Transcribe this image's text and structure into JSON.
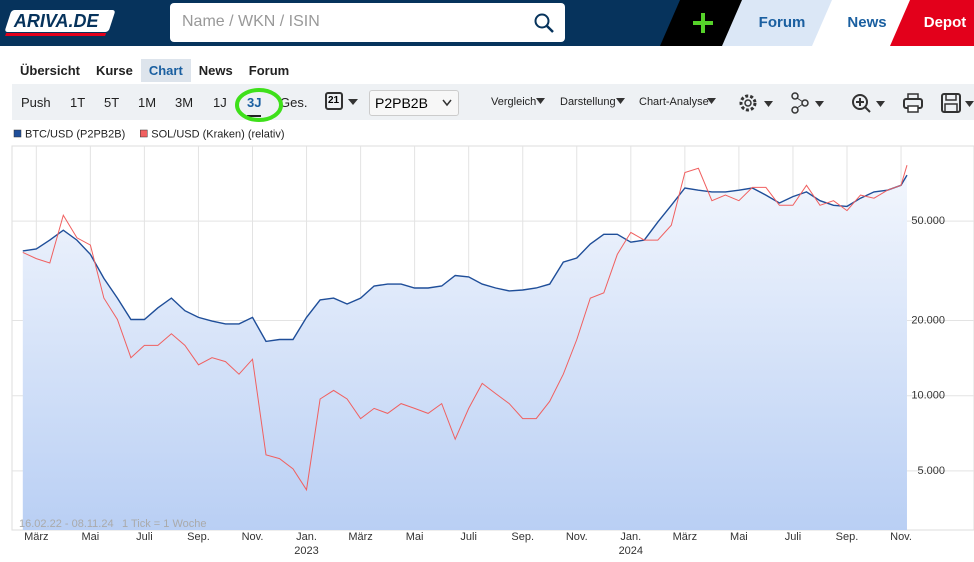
{
  "header": {
    "logo": "ARIVA.DE",
    "search_placeholder": "Name / WKN / ISIN",
    "tabs": [
      "Forum",
      "News",
      "Depot"
    ]
  },
  "nav": [
    "Übersicht",
    "Kurse",
    "Chart",
    "News",
    "Forum"
  ],
  "toolbar": {
    "periods": [
      "Push",
      "1T",
      "5T",
      "1M",
      "3M",
      "1J",
      "3J",
      "Ges."
    ],
    "calendar_day": "21",
    "exchange": "P2PB2B",
    "menus": [
      "Vergleich",
      "Darstellung",
      "Chart-Analyse"
    ]
  },
  "chart_data": {
    "type": "line",
    "ylog": true,
    "grid": true,
    "area": true,
    "range_text": "16.02.22 - 08.11.24",
    "tick_text": "1 Tick = 1 Woche",
    "xlim": [
      1.1,
      36.7
    ],
    "ylim": [
      2900,
      100000
    ],
    "yticks": [
      {
        "value": 5000,
        "label": "5.000"
      },
      {
        "value": 10000,
        "label": "10.000"
      },
      {
        "value": 20000,
        "label": "20.000"
      },
      {
        "value": 50000,
        "label": "50.000"
      }
    ],
    "xticks": [
      {
        "value": 2,
        "label": "März"
      },
      {
        "value": 4,
        "label": "Mai"
      },
      {
        "value": 6,
        "label": "Juli"
      },
      {
        "value": 8,
        "label": "Sep."
      },
      {
        "value": 10,
        "label": "Nov."
      },
      {
        "value": 12,
        "label": "Jan."
      },
      {
        "value": 14,
        "label": "März"
      },
      {
        "value": 16,
        "label": "Mai"
      },
      {
        "value": 18,
        "label": "Juli"
      },
      {
        "value": 20,
        "label": "Sep."
      },
      {
        "value": 22,
        "label": "Nov."
      },
      {
        "value": 24,
        "label": "Jan."
      },
      {
        "value": 26,
        "label": "März"
      },
      {
        "value": 28,
        "label": "Mai"
      },
      {
        "value": 30,
        "label": "Juli"
      },
      {
        "value": 32,
        "label": "Sep."
      },
      {
        "value": 34,
        "label": "Nov."
      }
    ],
    "year_labels": [
      {
        "value": 12,
        "label": "2023"
      },
      {
        "value": 24,
        "label": "2024"
      }
    ],
    "x": [
      1.5,
      2,
      2.5,
      3,
      3.5,
      4,
      4.5,
      5,
      5.5,
      6,
      6.5,
      7,
      7.5,
      8,
      8.5,
      9,
      9.5,
      10,
      10.5,
      11,
      11.5,
      12,
      12.5,
      13,
      13.5,
      14,
      14.5,
      15,
      15.5,
      16,
      16.5,
      17,
      17.5,
      18,
      18.5,
      19,
      19.5,
      20,
      20.5,
      21,
      21.5,
      22,
      22.5,
      23,
      23.5,
      24,
      24.5,
      25,
      25.5,
      26,
      26.5,
      27,
      27.5,
      28,
      28.5,
      29,
      29.5,
      30,
      30.5,
      31,
      31.5,
      32,
      32.5,
      33,
      33.5,
      34,
      34.22
    ],
    "series": [
      {
        "name": "BTC/USD (P2PB2B)",
        "color": "#1f4e99",
        "values": [
          38000,
          38700,
          42000,
          46000,
          42000,
          36800,
          29500,
          24600,
          20200,
          20200,
          22500,
          24600,
          21900,
          20600,
          19900,
          19400,
          19400,
          20600,
          16500,
          16800,
          16800,
          20600,
          24200,
          24600,
          23300,
          24600,
          27500,
          28000,
          28000,
          27000,
          27000,
          27500,
          30300,
          29900,
          28000,
          27000,
          26300,
          26500,
          27000,
          28000,
          34300,
          35600,
          40500,
          44300,
          44300,
          41200,
          42000,
          49600,
          57900,
          67900,
          66500,
          65500,
          65500,
          66500,
          67900,
          63600,
          59100,
          62700,
          65500,
          60400,
          57900,
          57300,
          61800,
          65500,
          66500,
          69600,
          76500
        ]
      },
      {
        "name": "SOL/USD (Kraken) (relativ)",
        "color": "#f06060",
        "values": [
          37500,
          35400,
          34000,
          52800,
          42900,
          40100,
          24600,
          20200,
          14200,
          15900,
          15900,
          17700,
          15900,
          13300,
          14200,
          13700,
          12200,
          14000,
          5800,
          5600,
          5100,
          4200,
          9700,
          10500,
          9700,
          8100,
          8900,
          8500,
          9300,
          8900,
          8500,
          9300,
          6700,
          8900,
          11200,
          10200,
          9300,
          8100,
          8100,
          9500,
          12200,
          16800,
          24600,
          25800,
          36800,
          45100,
          42000,
          42000,
          48200,
          78300,
          81400,
          60400,
          63600,
          60400,
          68300,
          68300,
          57900,
          57900,
          69600,
          57900,
          60400,
          55100,
          63600,
          61800,
          66500,
          69600,
          83800
        ]
      }
    ]
  }
}
